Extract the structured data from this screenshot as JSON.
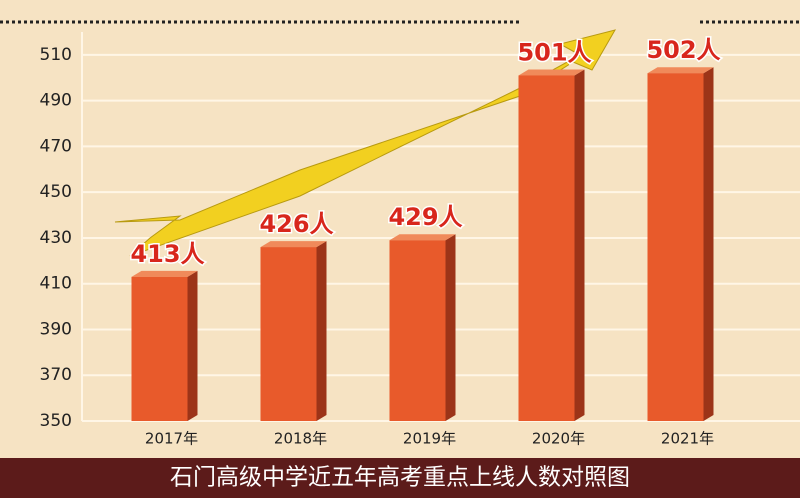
{
  "chart_data": {
    "type": "bar",
    "title": "石门高级中学近五年高考重点上线人数对照图",
    "categories": [
      "2017年",
      "2018年",
      "2019年",
      "2020年",
      "2021年"
    ],
    "values": [
      413,
      426,
      429,
      501,
      502
    ],
    "value_labels": [
      "413人",
      "426人",
      "429人",
      "501人",
      "502人"
    ],
    "color": "#e85a2b",
    "ylim": [
      350,
      520
    ],
    "yticks": [
      350,
      370,
      390,
      410,
      430,
      450,
      470,
      490,
      510
    ],
    "grid": true
  }
}
